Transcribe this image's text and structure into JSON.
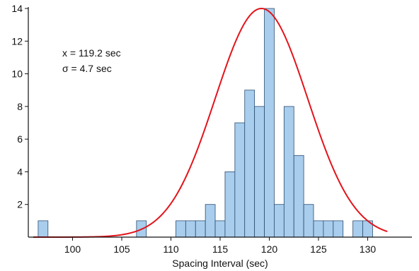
{
  "chart_data": {
    "type": "bar",
    "subtype": "histogram",
    "title": "",
    "xlabel": "Spacing Interval (sec)",
    "ylabel": "",
    "xlim": [
      95.5,
      134.5
    ],
    "ylim": [
      0,
      14
    ],
    "x_ticks": [
      100,
      105,
      110,
      115,
      120,
      125,
      130
    ],
    "y_ticks": [
      2,
      4,
      6,
      8,
      10,
      12,
      14
    ],
    "bin_width": 1,
    "bins": [
      {
        "x": 97,
        "count": 1
      },
      {
        "x": 107,
        "count": 1
      },
      {
        "x": 111,
        "count": 1
      },
      {
        "x": 112,
        "count": 1
      },
      {
        "x": 113,
        "count": 1
      },
      {
        "x": 114,
        "count": 2
      },
      {
        "x": 115,
        "count": 1
      },
      {
        "x": 116,
        "count": 4
      },
      {
        "x": 117,
        "count": 7
      },
      {
        "x": 118,
        "count": 9
      },
      {
        "x": 119,
        "count": 8
      },
      {
        "x": 120,
        "count": 14
      },
      {
        "x": 121,
        "count": 2
      },
      {
        "x": 122,
        "count": 8
      },
      {
        "x": 123,
        "count": 5
      },
      {
        "x": 124,
        "count": 2
      },
      {
        "x": 125,
        "count": 1
      },
      {
        "x": 126,
        "count": 1
      },
      {
        "x": 127,
        "count": 1
      },
      {
        "x": 129,
        "count": 1
      },
      {
        "x": 130,
        "count": 1
      }
    ],
    "fit_curve": {
      "type": "gaussian",
      "mean": 119.2,
      "sigma": 4.7,
      "peak": 14,
      "x_range": [
        96,
        132
      ]
    },
    "annotations": {
      "mean_label": "x = 119.2 sec",
      "sigma_label": "σ = 4.7 sec"
    },
    "grid": false,
    "legend": "none",
    "colors": {
      "bar_fill": "#A9CDEC",
      "bar_stroke": "#2B4E72",
      "curve": "#E3141B",
      "axis": "#111111"
    }
  }
}
